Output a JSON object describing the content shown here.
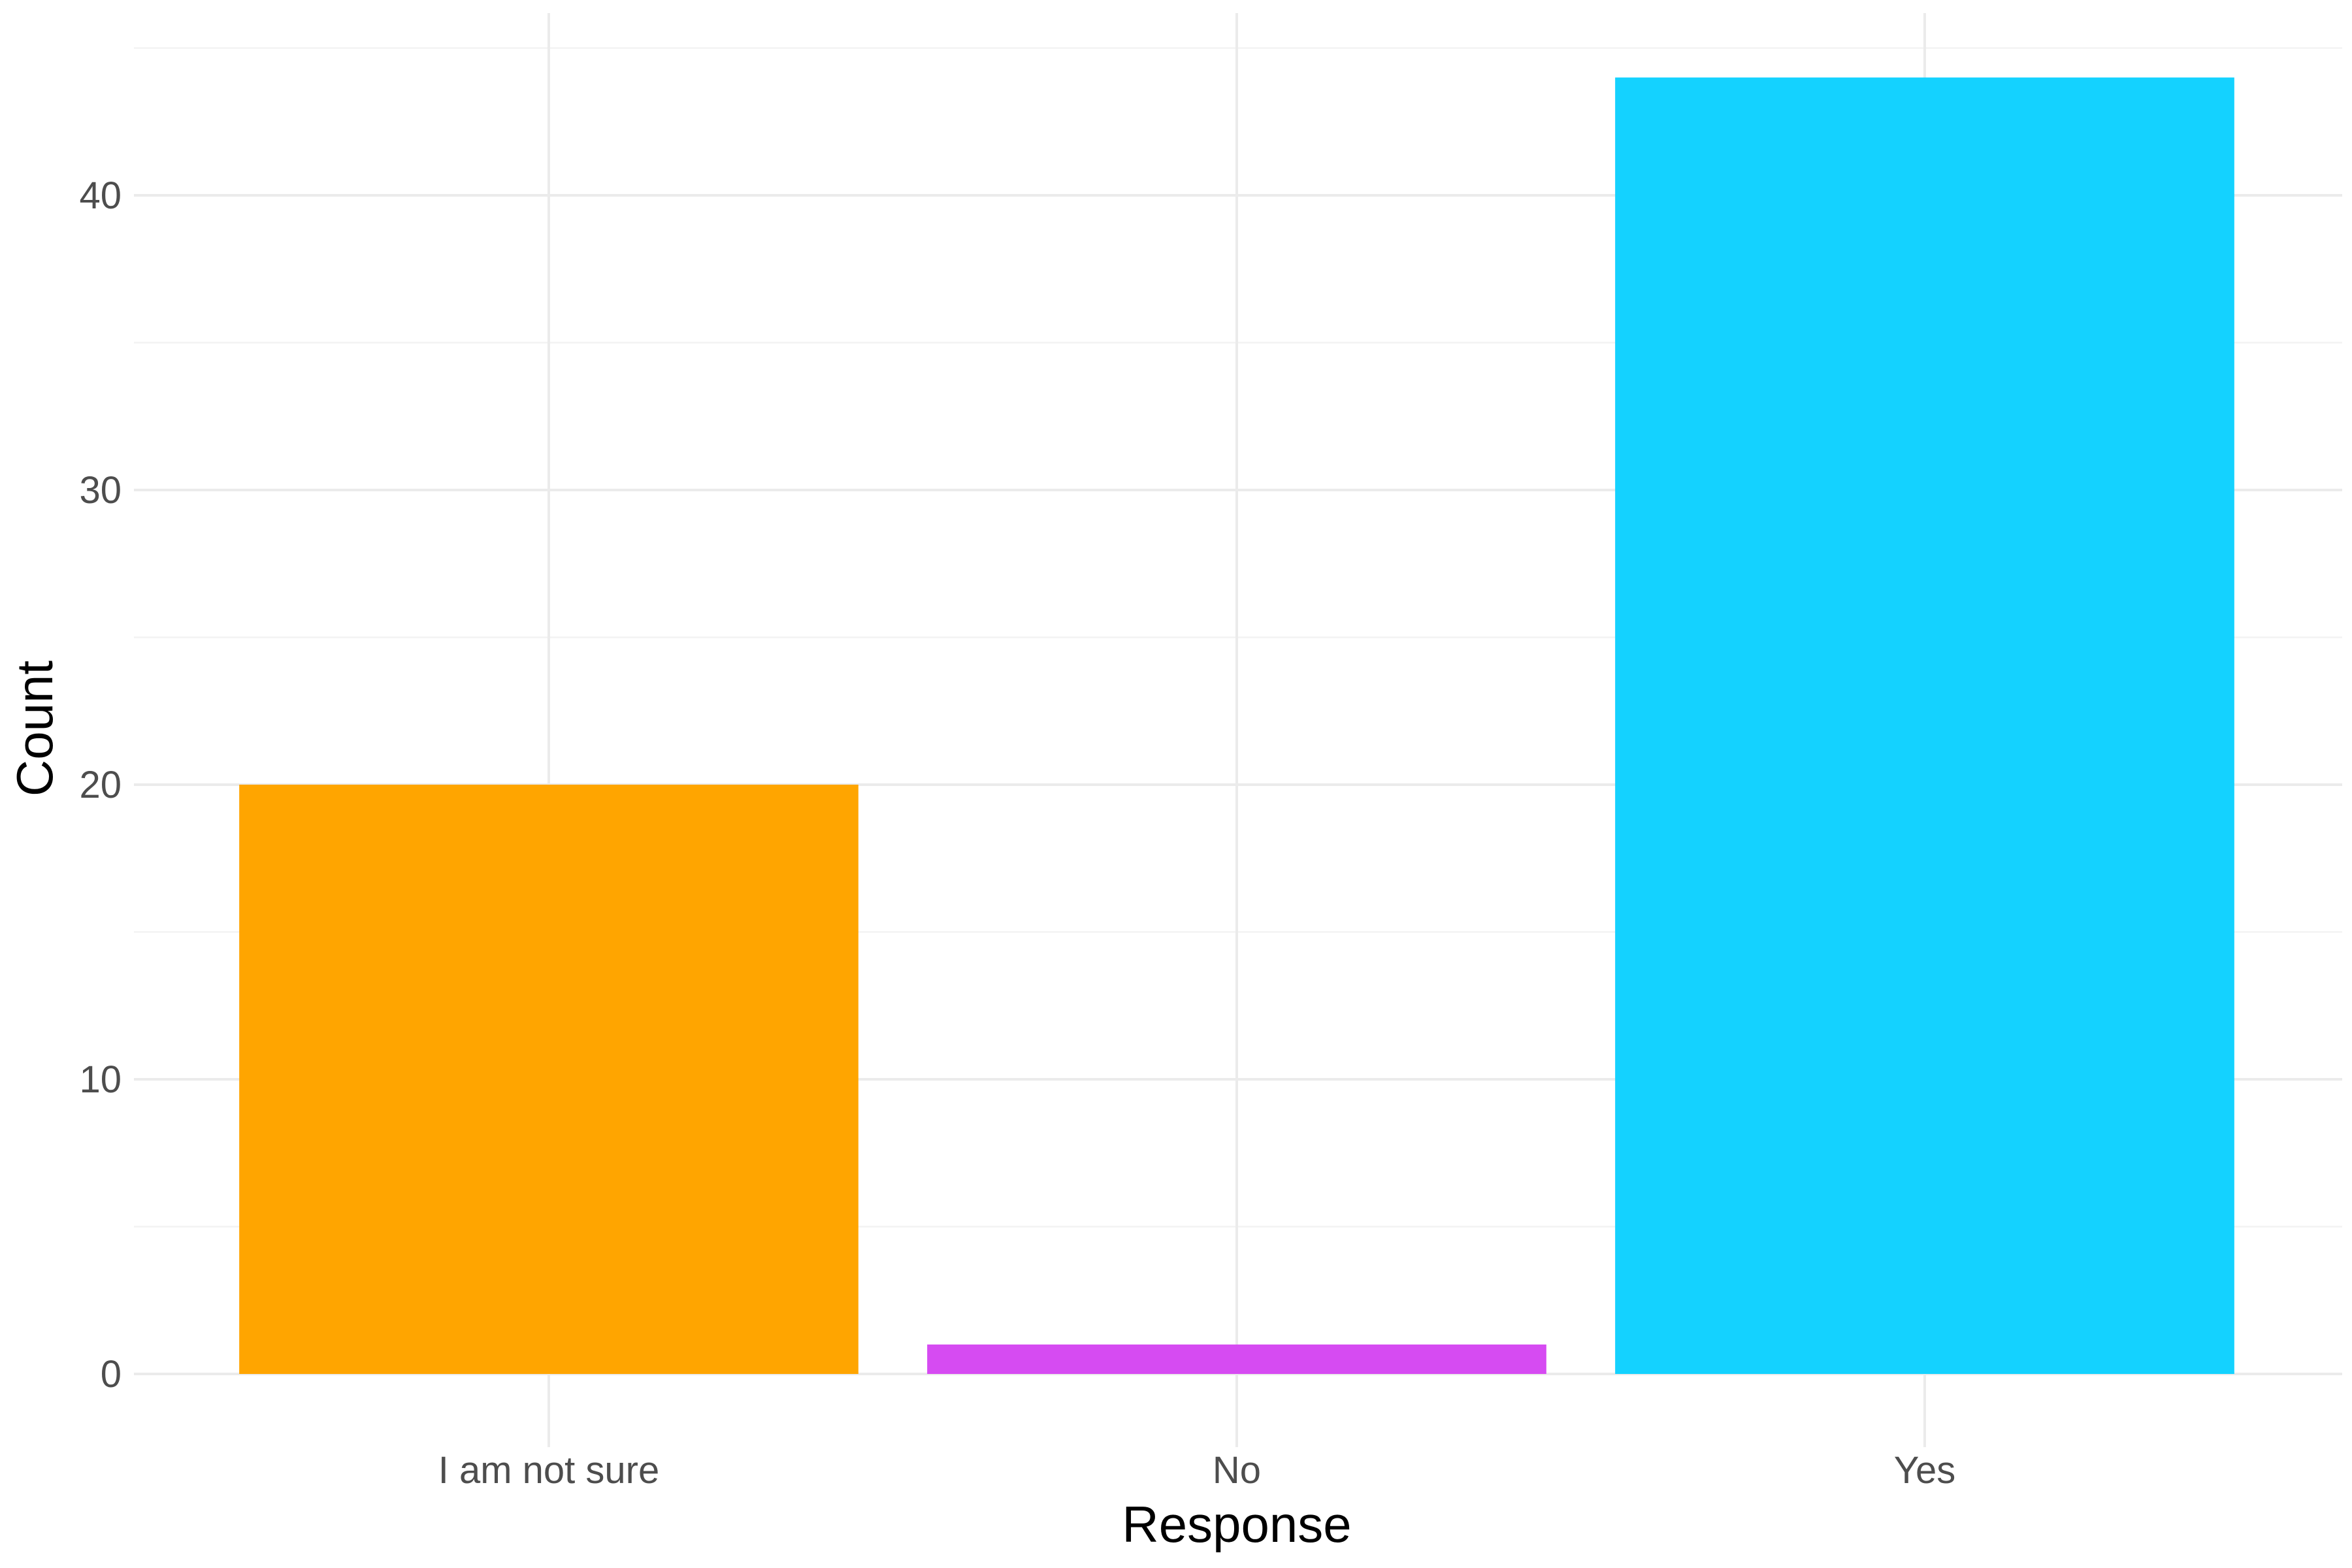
{
  "chart_data": {
    "type": "bar",
    "categories": [
      "I am not sure",
      "No",
      "Yes"
    ],
    "values": [
      20,
      1,
      44
    ],
    "colors": [
      "#FFA500",
      "#D64BF2",
      "#14D2FF"
    ],
    "xlabel": "Response",
    "ylabel": "Count",
    "ylim": [
      0,
      45
    ],
    "yticks": [
      0,
      10,
      20,
      30,
      40
    ],
    "grid": true,
    "legend": "none"
  }
}
